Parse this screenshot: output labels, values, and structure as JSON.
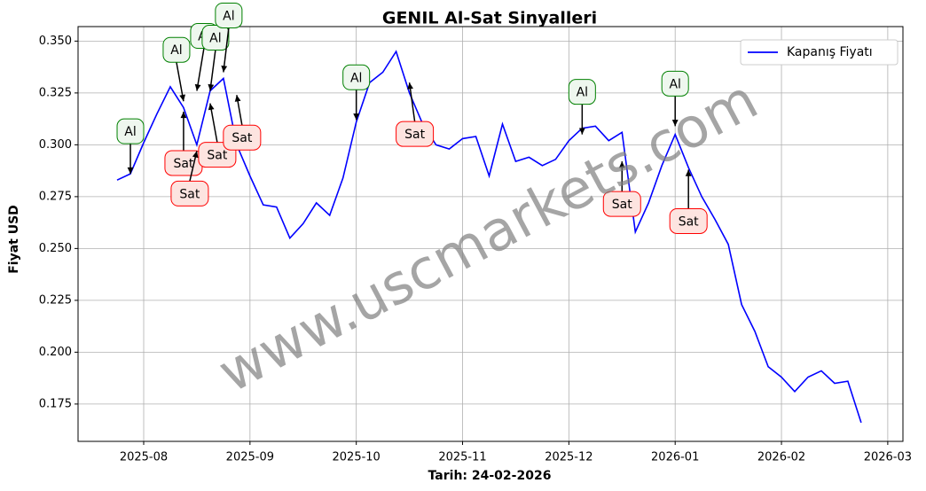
{
  "chart_data": {
    "type": "line",
    "title": "GENIL Al-Sat Sinyalleri",
    "x_label": "Tarih: 24-02-2026",
    "y_label": "Fiyat USD",
    "watermark": "www.uscmarkets.com",
    "categories": [
      null,
      null,
      "2025-08",
      null,
      null,
      null,
      null,
      null,
      null,
      null,
      "2025-09",
      null,
      null,
      null,
      null,
      null,
      null,
      null,
      "2025-10",
      null,
      null,
      null,
      null,
      null,
      null,
      null,
      "2025-11",
      null,
      null,
      null,
      null,
      null,
      null,
      null,
      "2025-12",
      null,
      null,
      null,
      null,
      null,
      null,
      null,
      "2026-01",
      null,
      null,
      null,
      null,
      null,
      null,
      null,
      "2026-02",
      null,
      null,
      null,
      null,
      null,
      null,
      null,
      "2026-03"
    ],
    "series": [
      {
        "name": "Kapanış Fiyatı",
        "color": "#0000ff",
        "values": [
          0.283,
          0.286,
          0.301,
          0.315,
          0.328,
          0.318,
          0.3,
          0.326,
          0.332,
          0.3,
          0.285,
          0.271,
          0.27,
          0.255,
          0.262,
          0.272,
          0.266,
          0.284,
          0.311,
          0.33,
          0.335,
          0.345,
          0.325,
          0.31,
          0.3,
          0.298,
          0.303,
          0.304,
          0.285,
          0.31,
          0.292,
          0.294,
          0.29,
          0.293,
          0.302,
          0.308,
          0.309,
          0.302,
          0.306,
          0.258,
          0.272,
          0.29,
          0.305,
          0.289,
          0.275,
          0.264,
          0.252,
          0.223,
          0.21,
          0.193,
          0.188,
          0.181,
          0.188,
          0.191,
          0.185,
          0.186,
          0.166,
          null,
          null
        ]
      }
    ],
    "signals": [
      {
        "name": "Al",
        "color": "#008000",
        "values": [
          null,
          0.286,
          null,
          null,
          null,
          0.321,
          0.326,
          0.326,
          0.335,
          null,
          null,
          null,
          null,
          null,
          null,
          null,
          null,
          null,
          0.312,
          null,
          null,
          null,
          null,
          null,
          null,
          null,
          null,
          null,
          null,
          null,
          null,
          null,
          null,
          null,
          null,
          0.305,
          null,
          null,
          null,
          null,
          null,
          null,
          0.309,
          null,
          null,
          null,
          null,
          null,
          null,
          null,
          null,
          null,
          null,
          null,
          null,
          null,
          null,
          null,
          null
        ]
      },
      {
        "name": "Sat",
        "color": "#ff0000",
        "values": [
          null,
          null,
          null,
          null,
          null,
          0.316,
          0.297,
          0.32,
          null,
          0.324,
          null,
          null,
          null,
          null,
          null,
          null,
          null,
          null,
          null,
          null,
          null,
          null,
          0.33,
          null,
          null,
          null,
          null,
          null,
          null,
          null,
          null,
          null,
          null,
          null,
          null,
          null,
          null,
          null,
          0.292,
          null,
          null,
          null,
          null,
          0.288,
          null,
          null,
          null,
          null,
          null,
          null,
          null,
          null,
          null,
          null,
          null,
          null,
          null,
          null,
          null
        ]
      }
    ],
    "ylim": [
      0.157,
      0.357
    ],
    "yticks": [
      0.175,
      {
        "value": 0.2,
        "label": "0.200"
      },
      0.225,
      {
        "value": 0.25,
        "label": "0.250"
      },
      0.275,
      {
        "value": 0.3,
        "label": "0.300"
      },
      0.325,
      {
        "value": 0.35,
        "label": "0.350"
      }
    ],
    "grid": true,
    "legend": "upper right"
  }
}
